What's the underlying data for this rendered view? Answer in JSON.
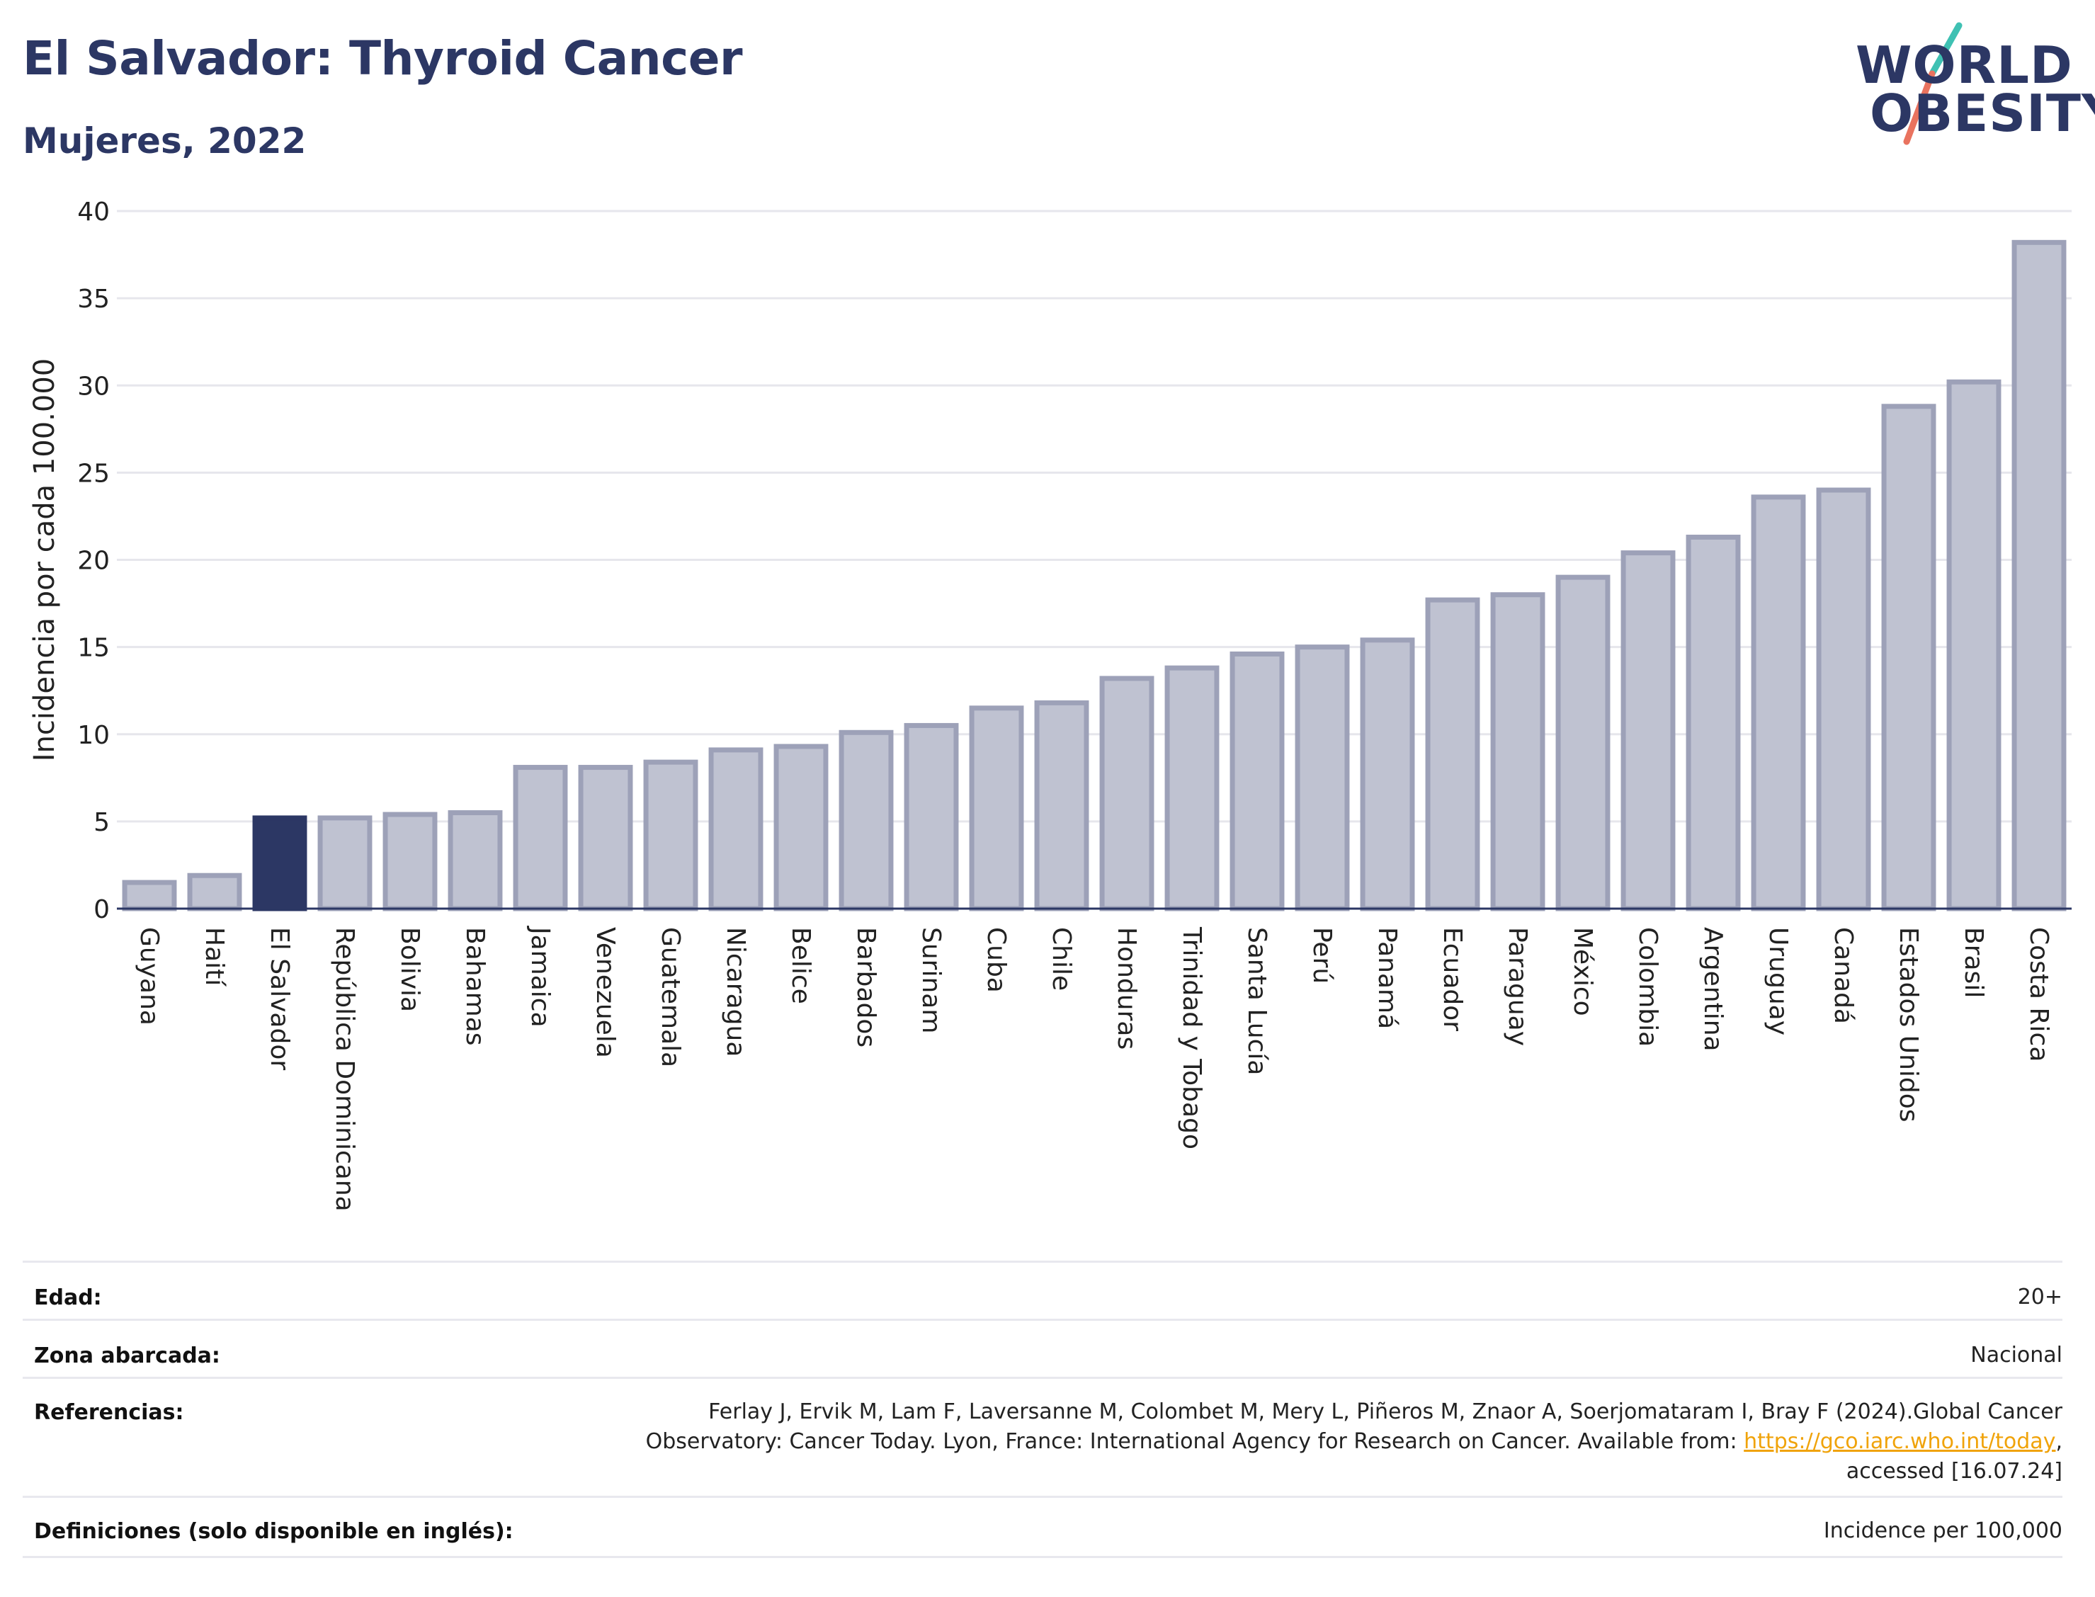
{
  "header": {
    "title": "El Salvador: Thyroid Cancer",
    "subtitle": "Mujeres, 2022"
  },
  "logo": {
    "line1": "WORLD",
    "line2": "OBESITY",
    "text": "WORLD OBESITY"
  },
  "colors": {
    "highlight": "#2c3764",
    "bar": "#bfc2d1",
    "bar_stroke": "#9da1b8",
    "grid": "#e6e6ec",
    "text": "#222222",
    "link": "#f0a30a",
    "logo_accent_teal": "#3fc1b3",
    "logo_accent_coral": "#e9735f"
  },
  "chart_data": {
    "type": "bar",
    "categories": [
      "Guyana",
      "Haití",
      "El Salvador",
      "República Dominicana",
      "Bolivia",
      "Bahamas",
      "Jamaica",
      "Venezuela",
      "Guatemala",
      "Nicaragua",
      "Belice",
      "Barbados",
      "Surinam",
      "Cuba",
      "Chile",
      "Honduras",
      "Trinidad y Tobago",
      "Santa Lucía",
      "Perú",
      "Panamá",
      "Ecuador",
      "Paraguay",
      "México",
      "Colombia",
      "Argentina",
      "Uruguay",
      "Canadá",
      "Estados Unidos",
      "Brasil",
      "Costa Rica"
    ],
    "values": [
      1.5,
      1.9,
      5.2,
      5.2,
      5.4,
      5.5,
      8.1,
      8.1,
      8.4,
      9.1,
      9.3,
      10.1,
      10.5,
      11.5,
      11.8,
      13.2,
      13.8,
      14.6,
      15.0,
      15.4,
      17.7,
      18.0,
      19.0,
      20.4,
      21.3,
      23.6,
      24.0,
      28.8,
      30.2,
      38.2
    ],
    "highlight": "El Salvador",
    "ylabel": "Incidencia por cada 100.000",
    "xlabel": "",
    "ylim": [
      0,
      40
    ],
    "yticks": [
      0,
      5,
      10,
      15,
      20,
      25,
      30,
      35,
      40
    ],
    "grid": true
  },
  "meta": [
    {
      "label": "Edad:",
      "value": "20+"
    },
    {
      "label": "Zona abarcada:",
      "value": "Nacional"
    },
    {
      "label": "Referencias:",
      "value_line1": "Ferlay J, Ervik M, Lam F, Laversanne M, Colombet M, Mery L, Piñeros M, Znaor A, Soerjomataram I, Bray F (2024).Global Cancer",
      "value_line2_pre": "Observatory: Cancer Today. Lyon, France: International Agency for Research on Cancer. Available from: ",
      "value_link": "https://gco.iarc.who.int/today",
      "value_line2_post": ",",
      "value_line3": "accessed [16.07.24]"
    },
    {
      "label": "Definiciones (solo disponible en inglés):",
      "value": "Incidence per 100,000"
    }
  ]
}
